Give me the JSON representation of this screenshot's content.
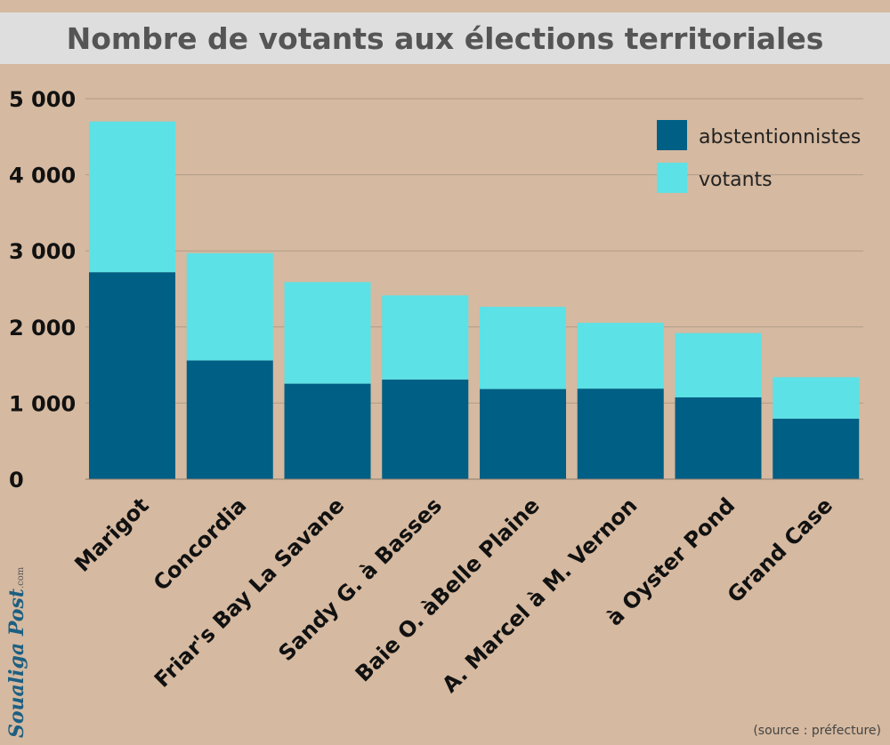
{
  "chart_data": {
    "type": "bar",
    "stacked": true,
    "title": "Nombre de votants aux élections territoriales",
    "categories": [
      "Marigot",
      "Concordia",
      "Friar's Bay La Savane",
      "Sandy G. à Basses",
      "Baie O. àBelle Plaine",
      "A. Marcel à M. Vernon",
      "à Oyster Pond",
      "Grand Case"
    ],
    "series": [
      {
        "name": "abstentionnistes",
        "color": "#005f85",
        "values": [
          2720,
          1560,
          1255,
          1310,
          1185,
          1190,
          1075,
          795
        ]
      },
      {
        "name": "votants",
        "color": "#5ce1e6",
        "values": [
          1980,
          1410,
          1335,
          1105,
          1080,
          865,
          845,
          545
        ]
      }
    ],
    "ylim": [
      0,
      5000
    ],
    "yticks": [
      0,
      1000,
      2000,
      3000,
      4000,
      5000
    ],
    "ytick_labels": [
      "0",
      "1 000",
      "2 000",
      "3 000",
      "4 000",
      "5 000"
    ],
    "grid": true,
    "legend_position": "top-right"
  },
  "source_note": "(source : préfecture)",
  "logo": {
    "name": "Soualiga Post",
    "suffix": ".com"
  }
}
